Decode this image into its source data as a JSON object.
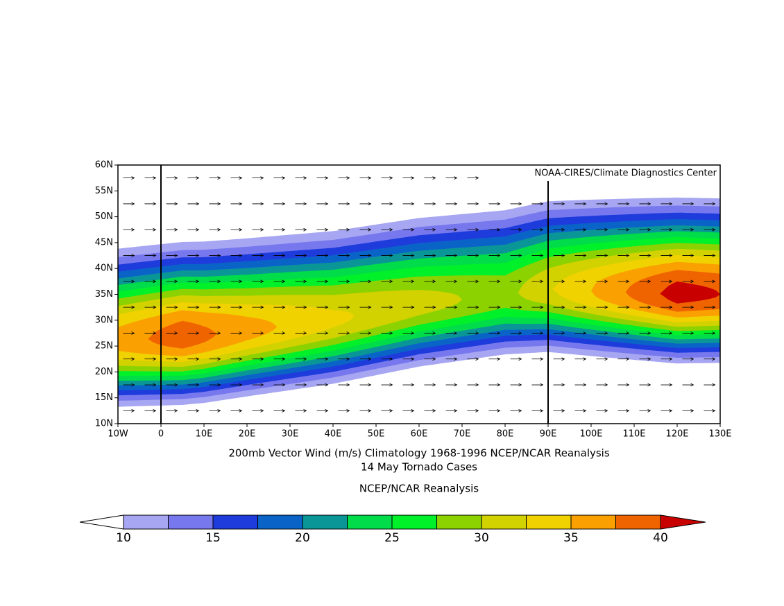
{
  "map": {
    "credit": "NOAA-CIRES/Climate Diagnostics Center",
    "title": "200mb Vector Wind (m/s) Climatology 1968-1996 NCEP/NCAR Reanalysis",
    "subtitle": "14 May Tornado Cases",
    "source": "NCEP/NCAR Reanalysis",
    "lon_range": [
      -10,
      130
    ],
    "lat_range": [
      10,
      60
    ],
    "lon_ticks": [
      {
        "value": -10,
        "label": "10W"
      },
      0,
      {
        "value": 10,
        "label": "10E"
      },
      {
        "value": 20,
        "label": "20E"
      },
      {
        "value": 30,
        "label": "30E"
      },
      {
        "value": 40,
        "label": "40E"
      },
      {
        "value": 50,
        "label": "50E"
      },
      {
        "value": 60,
        "label": "60E"
      },
      {
        "value": 70,
        "label": "70E"
      },
      {
        "value": 80,
        "label": "80E"
      },
      {
        "value": 90,
        "label": "90E"
      },
      {
        "value": 100,
        "label": "100E"
      },
      {
        "value": 110,
        "label": "110E"
      },
      {
        "value": 120,
        "label": "120E"
      },
      {
        "value": 130,
        "label": "130E"
      }
    ],
    "lat_ticks": [
      {
        "value": 10,
        "label": "10N"
      },
      {
        "value": 15,
        "label": "15N"
      },
      {
        "value": 20,
        "label": "20N"
      },
      {
        "value": 25,
        "label": "25N"
      },
      {
        "value": 30,
        "label": "30N"
      },
      {
        "value": 35,
        "label": "35N"
      },
      {
        "value": 40,
        "label": "40N"
      },
      {
        "value": 45,
        "label": "45N"
      },
      {
        "value": 50,
        "label": "50N"
      },
      {
        "value": 55,
        "label": "55N"
      },
      {
        "value": 60,
        "label": "60N"
      }
    ],
    "colorbar": {
      "labels": [
        10,
        15,
        20,
        25,
        30,
        35,
        40
      ],
      "colors": [
        "#ffffff",
        "#a6a6f2",
        "#7878ee",
        "#1e3cdc",
        "#0a64c8",
        "#0a9696",
        "#00dc4a",
        "#00f02a",
        "#8cd200",
        "#d2d200",
        "#f0d200",
        "#faa000",
        "#f06400",
        "#c80000"
      ]
    }
  }
}
